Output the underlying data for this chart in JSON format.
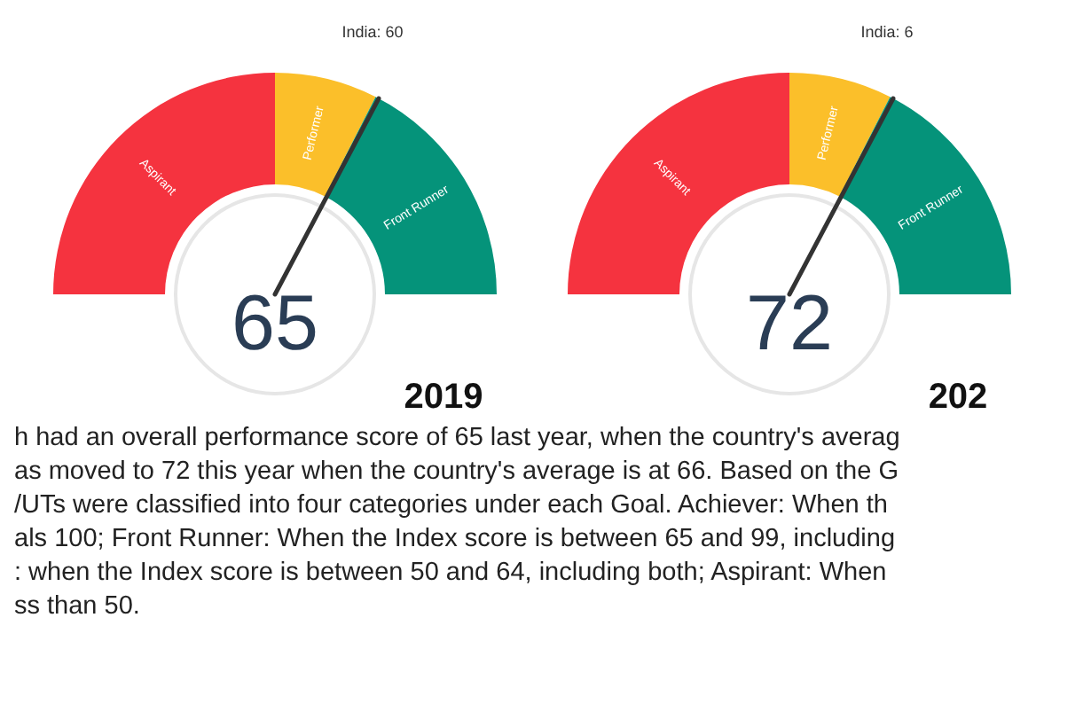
{
  "chart_data": [
    {
      "type": "donut",
      "categories": [
        "Aspirant",
        "Performer",
        "Front Runner"
      ],
      "values": [
        50,
        15,
        35
      ],
      "colors": [
        "#f5333f",
        "#fbbf2a",
        "#05937a"
      ],
      "needle": "Front Runner",
      "annotations": [
        "65",
        "2019",
        "India: 60"
      ]
    },
    {
      "type": "donut",
      "categories": [
        "Aspirant",
        "Performer",
        "Front Runner"
      ],
      "values": [
        50,
        15,
        35
      ],
      "colors": [
        "#f5333f",
        "#fbbf2a",
        "#05937a"
      ],
      "needle": "Front Runner",
      "annotations": [
        "72",
        "202",
        "India: 6"
      ]
    },
    {
      "type": "other",
      "annotations": [
        "h had an overall performance score of 65 last year, when the country's averag",
        "as moved to 72 this year when the country's average is at 66. Based on the G",
        "/UTs were classified into four categories under each Goal. Achiever: When th",
        "als 100; Front Runner: When the Index score is between 65 and 99, including",
        ": when the Index score is between 50 and 64, including both; Aspirant: When",
        "ss than 50."
      ]
    }
  ]
}
